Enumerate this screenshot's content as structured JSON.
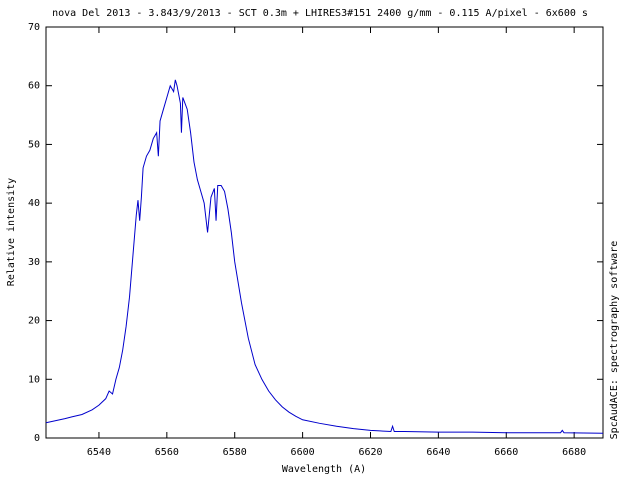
{
  "chart_data": {
    "type": "line",
    "title": "nova Del 2013 - 3.843/9/2013 - SCT 0.3m + LHIRES3#151 2400 g/mm - 0.115 A/pixel - 6x600 s",
    "x_label": "Wavelength (A)",
    "y_label": "Relative intensity",
    "side_note": "SpcAudACE: spectrography software",
    "color": "#0000cc",
    "xlim": [
      6524.4,
      6688.5
    ],
    "ylim": [
      0,
      70
    ],
    "xticks": [
      6540,
      6560,
      6580,
      6600,
      6620,
      6640,
      6660,
      6680
    ],
    "yticks": [
      0,
      10,
      20,
      30,
      40,
      50,
      60,
      70
    ],
    "grid": false,
    "x": [
      6524.4,
      6530,
      6532,
      6535,
      6538,
      6540,
      6542,
      6543,
      6544,
      6545,
      6546,
      6547,
      6548,
      6549,
      6550,
      6551,
      6551.5,
      6552,
      6552.5,
      6553,
      6554,
      6555,
      6556,
      6557,
      6557.5,
      6558,
      6559,
      6560,
      6561,
      6562,
      6562.5,
      6563,
      6564,
      6564.3,
      6564.7,
      6566,
      6567,
      6568,
      6569,
      6570,
      6571,
      6572,
      6572.5,
      6573,
      6574,
      6574.5,
      6575,
      6576,
      6577,
      6578,
      6579,
      6580,
      6582,
      6584,
      6586,
      6588,
      6590,
      6592,
      6594,
      6596,
      6598,
      6600,
      6605,
      6610,
      6615,
      6620,
      6626,
      6626.5,
      6627,
      6630,
      6640,
      6650,
      6660,
      6670,
      6676,
      6676.5,
      6677,
      6688.5
    ],
    "values": [
      2.6,
      3.3,
      3.6,
      4.0,
      4.8,
      5.6,
      6.7,
      8.0,
      7.5,
      10,
      12,
      15,
      19,
      24,
      31,
      38,
      40.5,
      37,
      41,
      46,
      48,
      49,
      51,
      52,
      48,
      54,
      56,
      58,
      60,
      59,
      61,
      60,
      57,
      52,
      58,
      56,
      52,
      47,
      44,
      42,
      40,
      35,
      38,
      41,
      42.5,
      37,
      43,
      43,
      42,
      39,
      35,
      30,
      23,
      17,
      12.5,
      10,
      8,
      6.5,
      5.3,
      4.4,
      3.7,
      3.1,
      2.5,
      2.0,
      1.6,
      1.3,
      1.1,
      2,
      1.1,
      1.1,
      1.0,
      1.0,
      0.9,
      0.9,
      0.9,
      1.3,
      0.9,
      0.8
    ]
  }
}
